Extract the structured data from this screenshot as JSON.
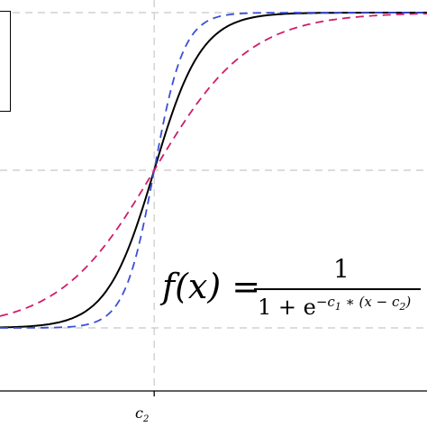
{
  "chart_data": {
    "type": "line",
    "title": "",
    "xlabel": "",
    "ylabel": "",
    "x_ticks": [
      {
        "value": 0,
        "label": "c",
        "subscript": "2"
      }
    ],
    "xlim": [
      -6.5,
      11.5
    ],
    "ylim": [
      -0.2,
      1.04
    ],
    "grid": "dashed",
    "reference_lines_y": [
      0,
      0.5,
      1
    ],
    "reference_lines_x": [
      0
    ],
    "formula": {
      "lhs": "f(x) =",
      "numerator": "1",
      "denominator_base": "1 + e",
      "exponent": "−c",
      "exponent_sub": "1",
      "exponent_rest": " ∗ (x − c",
      "exponent_sub2": "2",
      "exponent_close": ")"
    },
    "series": [
      {
        "color": "#000000",
        "style": "solid",
        "c1": 1.0,
        "c2": 0
      },
      {
        "color": "#3b4fd6",
        "style": "dashed",
        "c1": 1.6,
        "c2": 0
      },
      {
        "color": "#d01c6b",
        "style": "dashed",
        "c1": 0.5,
        "c2": 0
      }
    ]
  }
}
